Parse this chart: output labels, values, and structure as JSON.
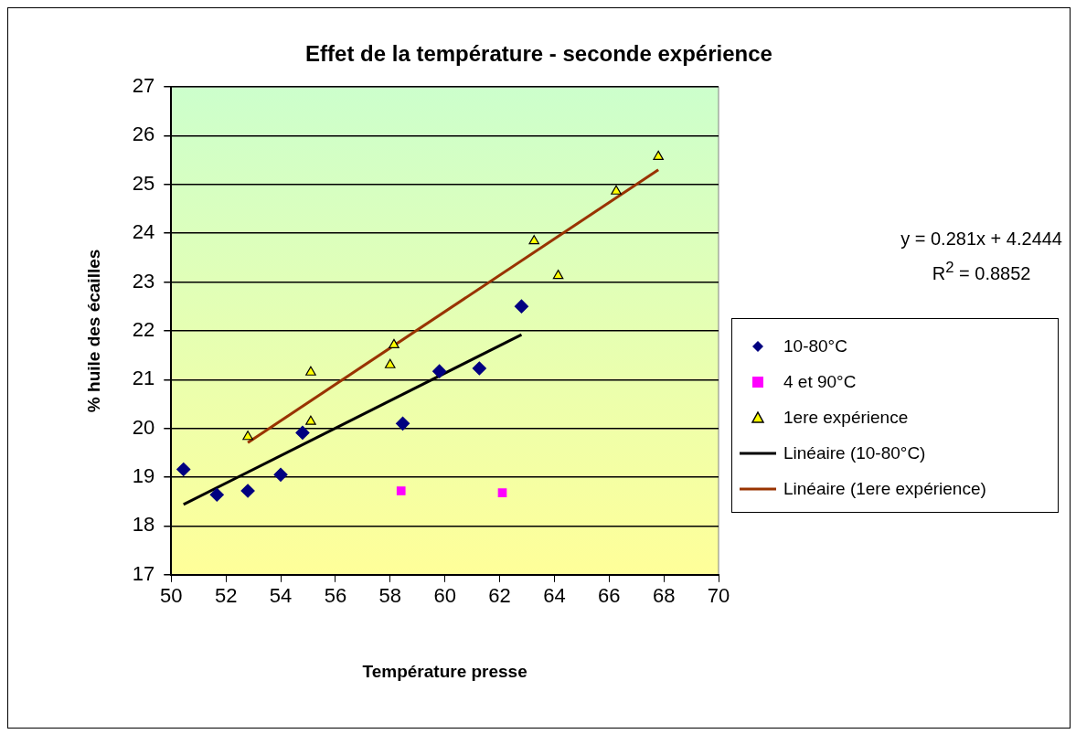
{
  "chart_data": {
    "type": "scatter",
    "title": "Effet de la température - seconde expérience",
    "xlabel": "Température presse",
    "ylabel": "% huile des écailles",
    "xlim": [
      50,
      70
    ],
    "xticks": [
      50,
      52,
      54,
      56,
      58,
      60,
      62,
      64,
      66,
      68,
      70
    ],
    "ylim": [
      17,
      27
    ],
    "yticks": [
      17,
      18,
      19,
      20,
      21,
      22,
      23,
      24,
      25,
      26,
      27
    ],
    "grid": "y",
    "legend": "right",
    "annotations": [
      "y = 0.281x + 4.2444",
      "R$^{2}$ = 0.8852"
    ],
    "series": [
      {
        "name": "10-80°C",
        "color": "#000080",
        "marker": "diamond",
        "x": [
          50.45,
          51.67,
          52.8,
          54.0,
          54.8,
          58.46,
          59.8,
          61.26,
          62.8
        ],
        "values": [
          19.16,
          18.64,
          18.72,
          19.05,
          19.91,
          20.1,
          21.17,
          21.23,
          22.5
        ]
      },
      {
        "name": "4 et 90°C",
        "color": "#ff00ff",
        "marker": "square",
        "x": [
          58.4,
          62.1
        ],
        "values": [
          18.72,
          18.68
        ]
      },
      {
        "name": "1ere expérience",
        "color": "#ffff00",
        "marker": "triangle",
        "x": [
          52.8,
          55.1,
          55.1,
          58.0,
          58.14,
          63.26,
          64.14,
          66.26,
          67.8
        ],
        "values": [
          19.83,
          21.15,
          20.14,
          21.3,
          21.71,
          23.84,
          23.13,
          24.86,
          25.57
        ]
      },
      {
        "name": "Linéaire (10-80°C)",
        "type": "line",
        "color": "#000000",
        "marker": "none",
        "line_style": "solid",
        "x": [
          50.45,
          62.8
        ],
        "values": [
          18.44,
          21.92
        ]
      },
      {
        "name": "Linéaire (1ere expérience)",
        "type": "line",
        "color": "#993300",
        "marker": "none",
        "line_style": "solid",
        "x": [
          52.8,
          67.8
        ],
        "values": [
          19.71,
          25.3
        ]
      }
    ]
  }
}
